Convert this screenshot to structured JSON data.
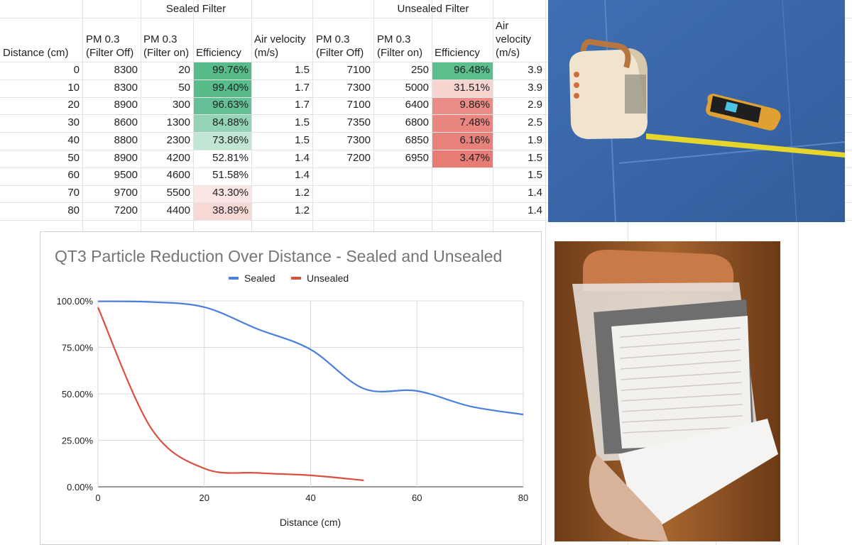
{
  "sheet": {
    "group_headers": {
      "sealed": "Sealed Filter",
      "unsealed": "Unsealed Filter"
    },
    "column_headers": {
      "distance": "Distance (cm)",
      "pm_off_1": "PM 0.3",
      "pm_off_2": "(Filter Off)",
      "pm_on_1": "PM 0.3",
      "pm_on_2": "(Filter on)",
      "eff": "Efficiency",
      "air_1": "Air velocity",
      "air_2": "(m/s)",
      "u_pm_off_1": "PM 0.3",
      "u_pm_off_2": "(Filter Off)",
      "u_pm_on_1": "PM 0.3",
      "u_pm_on_2": "(Filter on)",
      "u_eff": "Efficiency",
      "u_air_1": "Air",
      "u_air_2": "velocity",
      "u_air_3": "(m/s)"
    },
    "rows": [
      {
        "d": "0",
        "s_off": "8300",
        "s_on": "20",
        "s_eff": "99.76%",
        "s_air": "1.5",
        "u_off": "7100",
        "u_on": "250",
        "u_eff": "96.48%",
        "u_air": "3.9"
      },
      {
        "d": "10",
        "s_off": "8300",
        "s_on": "50",
        "s_eff": "99.40%",
        "s_air": "1.7",
        "u_off": "7300",
        "u_on": "5000",
        "u_eff": "31.51%",
        "u_air": "3.9"
      },
      {
        "d": "20",
        "s_off": "8900",
        "s_on": "300",
        "s_eff": "96.63%",
        "s_air": "1.7",
        "u_off": "7100",
        "u_on": "6400",
        "u_eff": "9.86%",
        "u_air": "2.9"
      },
      {
        "d": "30",
        "s_off": "8600",
        "s_on": "1300",
        "s_eff": "84.88%",
        "s_air": "1.5",
        "u_off": "7350",
        "u_on": "6800",
        "u_eff": "7.48%",
        "u_air": "2.5"
      },
      {
        "d": "40",
        "s_off": "8800",
        "s_on": "2300",
        "s_eff": "73.86%",
        "s_air": "1.5",
        "u_off": "7300",
        "u_on": "6850",
        "u_eff": "6.16%",
        "u_air": "1.9"
      },
      {
        "d": "50",
        "s_off": "8900",
        "s_on": "4200",
        "s_eff": "52.81%",
        "s_air": "1.4",
        "u_off": "7200",
        "u_on": "6950",
        "u_eff": "3.47%",
        "u_air": "1.5"
      },
      {
        "d": "60",
        "s_off": "9500",
        "s_on": "4600",
        "s_eff": "51.58%",
        "s_air": "1.4",
        "u_off": "",
        "u_on": "",
        "u_eff": "",
        "u_air": "1.5"
      },
      {
        "d": "70",
        "s_off": "9700",
        "s_on": "5500",
        "s_eff": "43.30%",
        "s_air": "1.2",
        "u_off": "",
        "u_on": "",
        "u_eff": "",
        "u_air": "1.4"
      },
      {
        "d": "80",
        "s_off": "7200",
        "s_on": "4400",
        "s_eff": "38.89%",
        "s_air": "1.2",
        "u_off": "",
        "u_on": "",
        "u_eff": "",
        "u_air": "1.4"
      }
    ],
    "colors": {
      "green_strong": "#57bb8a",
      "green_mid": "#7fcba4",
      "green_light": "#b7e1cd",
      "green_pale": "#d9efe3",
      "red_strong": "#e67c73",
      "red_mid": "#eda39d",
      "red_light": "#f4cccc",
      "red_pale": "#fbe9e7"
    }
  },
  "chart_data": {
    "type": "line",
    "title": "QT3 Particle Reduction Over Distance - Sealed and Unsealed",
    "xlabel": "Distance (cm)",
    "ylabel": "",
    "xlim": [
      0,
      80
    ],
    "ylim": [
      0,
      1
    ],
    "x_ticks": [
      "0",
      "20",
      "40",
      "60",
      "80"
    ],
    "y_ticks": [
      "0.00%",
      "25.00%",
      "50.00%",
      "75.00%",
      "100.00%"
    ],
    "legend_position": "top",
    "grid": true,
    "series": [
      {
        "name": "Sealed",
        "color": "#4a7fdc",
        "x": [
          0,
          10,
          20,
          30,
          40,
          50,
          60,
          70,
          80
        ],
        "y": [
          0.9976,
          0.994,
          0.9663,
          0.8488,
          0.7386,
          0.5281,
          0.5158,
          0.433,
          0.3889
        ]
      },
      {
        "name": "Unsealed",
        "color": "#d9503f",
        "x": [
          0,
          10,
          20,
          30,
          40,
          50
        ],
        "y": [
          0.9648,
          0.3151,
          0.0986,
          0.0748,
          0.0616,
          0.0347
        ]
      }
    ]
  },
  "photos": {
    "top_right": {
      "icon": "photo-purifier-and-meter-on-blue-mat"
    },
    "bottom_right": {
      "icon": "photo-hand-holding-purifier-filter"
    }
  }
}
